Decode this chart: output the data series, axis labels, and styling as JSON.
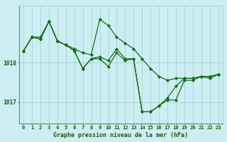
{
  "title": "Graphe pression niveau de la mer (hPa)",
  "bg_color": "#cceef2",
  "grid_color": "#aad4d8",
  "line_color": "#1a6b1a",
  "marker_color": "#1a6b1a",
  "label_color": "#1a5c1a",
  "series": [
    [
      1018.3,
      1018.65,
      1018.65,
      1019.05,
      1018.55,
      1018.45,
      1018.35,
      1018.25,
      1018.2,
      1019.1,
      1018.95,
      1018.65,
      1018.5,
      1018.35,
      1018.1,
      1017.85,
      1017.65,
      1017.55,
      1017.6,
      1017.6,
      1017.6,
      1017.65,
      1017.65,
      1017.7
    ],
    [
      1018.3,
      1018.65,
      1018.6,
      1019.05,
      1018.55,
      1018.45,
      1018.3,
      1017.85,
      1018.1,
      1018.15,
      1018.05,
      1018.35,
      1018.1,
      1018.1,
      1016.75,
      1016.75,
      1016.9,
      1017.1,
      1017.4,
      1017.6,
      1017.6,
      1017.65,
      1017.65,
      1017.7
    ],
    [
      1018.3,
      1018.65,
      1018.6,
      1019.05,
      1018.55,
      1018.45,
      1018.3,
      1017.85,
      1018.1,
      1018.1,
      1017.9,
      1018.25,
      1018.05,
      1018.1,
      1016.75,
      1016.75,
      1016.9,
      1017.05,
      1017.05,
      1017.55,
      1017.55,
      1017.65,
      1017.6,
      1017.7
    ]
  ],
  "ylim": [
    1016.45,
    1019.45
  ],
  "yticks": [
    1017.0,
    1018.0
  ],
  "ytick_labels": [
    "1017",
    "1018"
  ],
  "xticks": [
    0,
    1,
    2,
    3,
    4,
    5,
    6,
    7,
    8,
    9,
    10,
    11,
    12,
    13,
    14,
    15,
    16,
    17,
    18,
    19,
    20,
    21,
    22,
    23
  ],
  "marker_size": 2.2,
  "line_width": 0.9,
  "font_size_tick": 5.2,
  "font_size_xlabel": 6.0
}
